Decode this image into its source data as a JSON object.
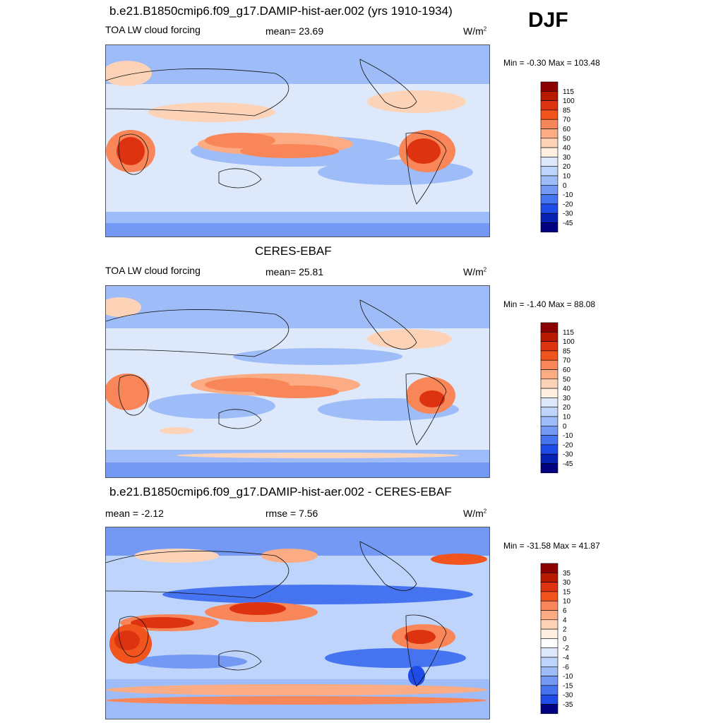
{
  "season": "DJF",
  "panels": [
    {
      "title": "b.e21.B1850cmip6.f09_g17.DAMIP-hist-aer.002 (yrs 1910-1934)",
      "left_label": "TOA LW cloud forcing",
      "center_label": "mean=  23.69",
      "units": "W/m",
      "units_sup": "2",
      "minmax": "Min =  -0.30 Max = 103.48",
      "colorbar": {
        "labels": [
          "115",
          "100",
          "85",
          "70",
          "60",
          "50",
          "40",
          "30",
          "20",
          "10",
          "0",
          "-10",
          "-20",
          "-30",
          "-45"
        ],
        "colors": [
          "#8b0000",
          "#b81a00",
          "#dd3311",
          "#f2541e",
          "#f98658",
          "#fcac84",
          "#fdd3b8",
          "#fff0e2",
          "#dde9fa",
          "#bfd4fa",
          "#9ebcf7",
          "#7499f4",
          "#4673f0",
          "#1f4ce6",
          "#0722b3",
          "#000080"
        ]
      }
    },
    {
      "title": "CERES-EBAF",
      "left_label": "TOA LW cloud forcing",
      "center_label": "mean=  25.81",
      "units": "W/m",
      "units_sup": "2",
      "minmax": "Min =  -1.40 Max =  88.08",
      "colorbar": {
        "labels": [
          "115",
          "100",
          "85",
          "70",
          "60",
          "50",
          "40",
          "30",
          "20",
          "10",
          "0",
          "-10",
          "-20",
          "-30",
          "-45"
        ],
        "colors": [
          "#8b0000",
          "#b81a00",
          "#dd3311",
          "#f2541e",
          "#f98658",
          "#fcac84",
          "#fdd3b8",
          "#fff0e2",
          "#dde9fa",
          "#bfd4fa",
          "#9ebcf7",
          "#7499f4",
          "#4673f0",
          "#1f4ce6",
          "#0722b3",
          "#000080"
        ]
      }
    },
    {
      "title": "b.e21.B1850cmip6.f09_g17.DAMIP-hist-aer.002 - CERES-EBAF",
      "left_label": "mean =  -2.12",
      "center_label": "rmse =   7.56",
      "units": "W/m",
      "units_sup": "2",
      "minmax": "Min = -31.58 Max =  41.87",
      "colorbar": {
        "labels": [
          "35",
          "30",
          "15",
          "10",
          "6",
          "4",
          "2",
          "0",
          "-2",
          "-4",
          "-6",
          "-10",
          "-15",
          "-30",
          "-35"
        ],
        "colors": [
          "#8b0000",
          "#b81a00",
          "#dd3311",
          "#f2541e",
          "#f98658",
          "#fcac84",
          "#fdd3b8",
          "#fff0e2",
          "#ffffff",
          "#dde9fa",
          "#bfd4fa",
          "#9ebcf7",
          "#7499f4",
          "#4673f0",
          "#1f4ce6",
          "#000080"
        ]
      }
    }
  ],
  "map_palette": {
    "ocean_base": "#dde9fa",
    "cool": "#9ebcf7",
    "cooler": "#7499f4",
    "coolest": "#1f4ce6",
    "warm_light": "#fdd3b8",
    "warm": "#f98658",
    "warm_strong": "#dd3311",
    "coast": "#111111"
  }
}
